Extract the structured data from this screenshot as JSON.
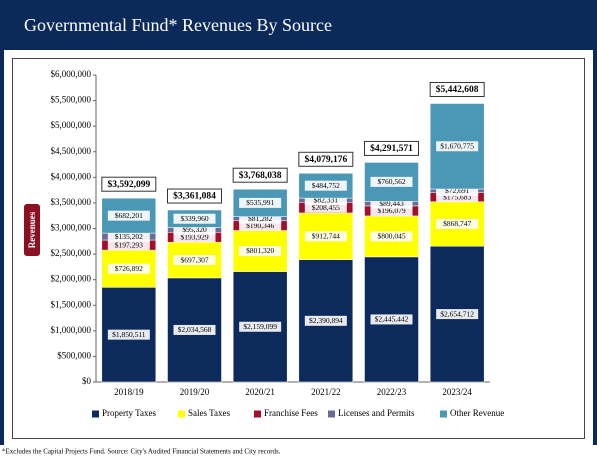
{
  "chart_data": {
    "type": "bar",
    "stacked": true,
    "title": "Governmental Fund* Revenues By Source",
    "y_label": "Revenues",
    "footnote": "*Excludes the Capital Projects Fund. Source: City's Audited Financial Statements and City records.",
    "categories": [
      "2018/19",
      "2019/20",
      "2020/21",
      "2021/22",
      "2022/23",
      "2023/24"
    ],
    "series": [
      {
        "name": "Property Taxes",
        "color": "#0d2a5c",
        "values": [
          1850511,
          2034568,
          2159099,
          2390894,
          2445442,
          2654712
        ],
        "value_labels": [
          "$1,850,511",
          "$2,034,568",
          "$2,159,099",
          "$2,390,894",
          "$2,445,442",
          "$2,654,712"
        ]
      },
      {
        "name": "Sales Taxes",
        "color": "#ffff00",
        "values": [
          726892,
          697307,
          801320,
          912744,
          800045,
          868747
        ],
        "value_labels": [
          "$726,892",
          "$697,307",
          "$801,320",
          "$912,744",
          "$800,045",
          "$868,747"
        ]
      },
      {
        "name": "Franchise Fees",
        "color": "#a3102c",
        "values": [
          197293,
          193929,
          190346,
          208455,
          196079,
          175683
        ],
        "value_labels": [
          "$197,293",
          "$193,929",
          "$190,346",
          "$208,455",
          "$196,079",
          "$175,683"
        ]
      },
      {
        "name": "Licenses and Permits",
        "color": "#6b6b9b",
        "values": [
          135202,
          95320,
          81282,
          82331,
          89443,
          72691
        ],
        "value_labels": [
          "$135,202",
          "$95,320",
          "$81,282",
          "$82,331",
          "$89,443",
          "$72,691"
        ]
      },
      {
        "name": "Other Revenue",
        "color": "#4a98b6",
        "values": [
          682201,
          339960,
          535991,
          484752,
          760562,
          1670775
        ],
        "value_labels": [
          "$682,201",
          "$339,960",
          "$535,991",
          "$484,752",
          "$760,562",
          "$1,670,775"
        ]
      }
    ],
    "totals": [
      3592099,
      3361084,
      3768038,
      4079176,
      4291571,
      5442608
    ],
    "total_labels": [
      "$3,592,099",
      "$3,361,084",
      "$3,768,038",
      "$4,079,176",
      "$4,291,571",
      "$5,442,608"
    ],
    "ylim": [
      0,
      6000000
    ],
    "yticks": [
      {
        "value": 0,
        "label": "$0"
      },
      {
        "value": 500000,
        "label": "$500,000"
      },
      {
        "value": 1000000,
        "label": "$1,000,000"
      },
      {
        "value": 1500000,
        "label": "$1,500,000"
      },
      {
        "value": 2000000,
        "label": "$2,000,000"
      },
      {
        "value": 2500000,
        "label": "$2,500,000"
      },
      {
        "value": 3000000,
        "label": "$3,000,000"
      },
      {
        "value": 3500000,
        "label": "$3,500,000"
      },
      {
        "value": 4000000,
        "label": "$4,000,000"
      },
      {
        "value": 4500000,
        "label": "$4,500,000"
      },
      {
        "value": 5000000,
        "label": "$5,000,000"
      },
      {
        "value": 5500000,
        "label": "$5,500,000"
      },
      {
        "value": 6000000,
        "label": "$6,000,000"
      }
    ],
    "legend": "bottom"
  }
}
